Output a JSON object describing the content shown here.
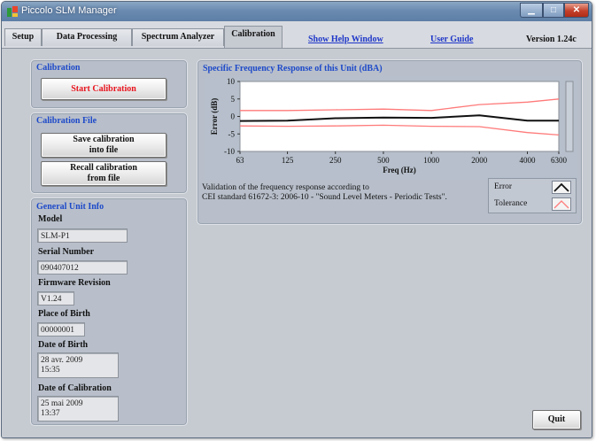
{
  "window": {
    "title": "Piccolo SLM Manager"
  },
  "tabs": [
    {
      "label": "Setup",
      "active": false
    },
    {
      "label": "Data Processing",
      "active": false
    },
    {
      "label": "Spectrum Analyzer",
      "active": false
    },
    {
      "label": "Calibration",
      "active": true
    }
  ],
  "links": {
    "help": "Show Help Window",
    "guide": "User Guide"
  },
  "version": "Version 1.24c",
  "calibration": {
    "title": "Calibration",
    "start_button": "Start Calibration",
    "start_color": "#e8141e"
  },
  "calibration_file": {
    "title": "Calibration File",
    "save_line1": "Save calibration",
    "save_line2": "into file",
    "recall_line1": "Recall calibration",
    "recall_line2": "from file"
  },
  "unit_info": {
    "title": "General Unit Info",
    "model_label": "Model",
    "model": "SLM-P1",
    "serial_label": "Serial Number",
    "serial": "090407012",
    "firmware_label": "Firmware Revision",
    "firmware": "V1.24",
    "birth_place_label": "Place of Birth",
    "birth_place": "00000001",
    "birth_date_label": "Date of Birth",
    "birth_date_line1": "28 avr. 2009",
    "birth_date_line2": "15:35",
    "calib_date_label": "Date of Calibration",
    "calib_date_line1": "25 mai 2009",
    "calib_date_line2": "13:37"
  },
  "response_panel": {
    "title": "Specific Frequency Response of this Unit (dBA)",
    "validation_line1": "Validation of the frequency response according to",
    "validation_line2": "CEI standard 61672-3: 2006-10 - \"Sound Level Meters - Periodic Tests\".",
    "legend_error": "Error",
    "legend_tolerance": "Tolerance"
  },
  "quit_button": "Quit",
  "colors": {
    "accent_title": "#1d49c9",
    "error": "#111111",
    "tolerance": "#ff7a7a"
  },
  "chart_data": {
    "type": "line",
    "title": "",
    "xlabel": "Freq (Hz)",
    "ylabel": "Error (dB)",
    "x": [
      63,
      125,
      250,
      500,
      1000,
      2000,
      4000,
      6300
    ],
    "xticks": [
      "63",
      "125",
      "250",
      "500",
      "1000",
      "2000",
      "4000",
      "6300"
    ],
    "yticks": [
      -10,
      -5,
      0,
      5,
      10
    ],
    "ylim": [
      -10,
      10
    ],
    "xscale": "log",
    "grid": false,
    "series": [
      {
        "name": "Error",
        "values": [
          -1.3,
          -1.2,
          -0.5,
          -0.3,
          -0.4,
          0.3,
          -1.2,
          -1.2
        ]
      },
      {
        "name": "Tolerance",
        "values": [
          1.7,
          1.7,
          1.9,
          2.1,
          1.7,
          3.4,
          4.1,
          5.0
        ]
      },
      {
        "name": "Tolerance",
        "values": [
          -2.7,
          -2.8,
          -2.7,
          -2.5,
          -2.8,
          -2.9,
          -4.6,
          -5.3
        ]
      }
    ]
  }
}
